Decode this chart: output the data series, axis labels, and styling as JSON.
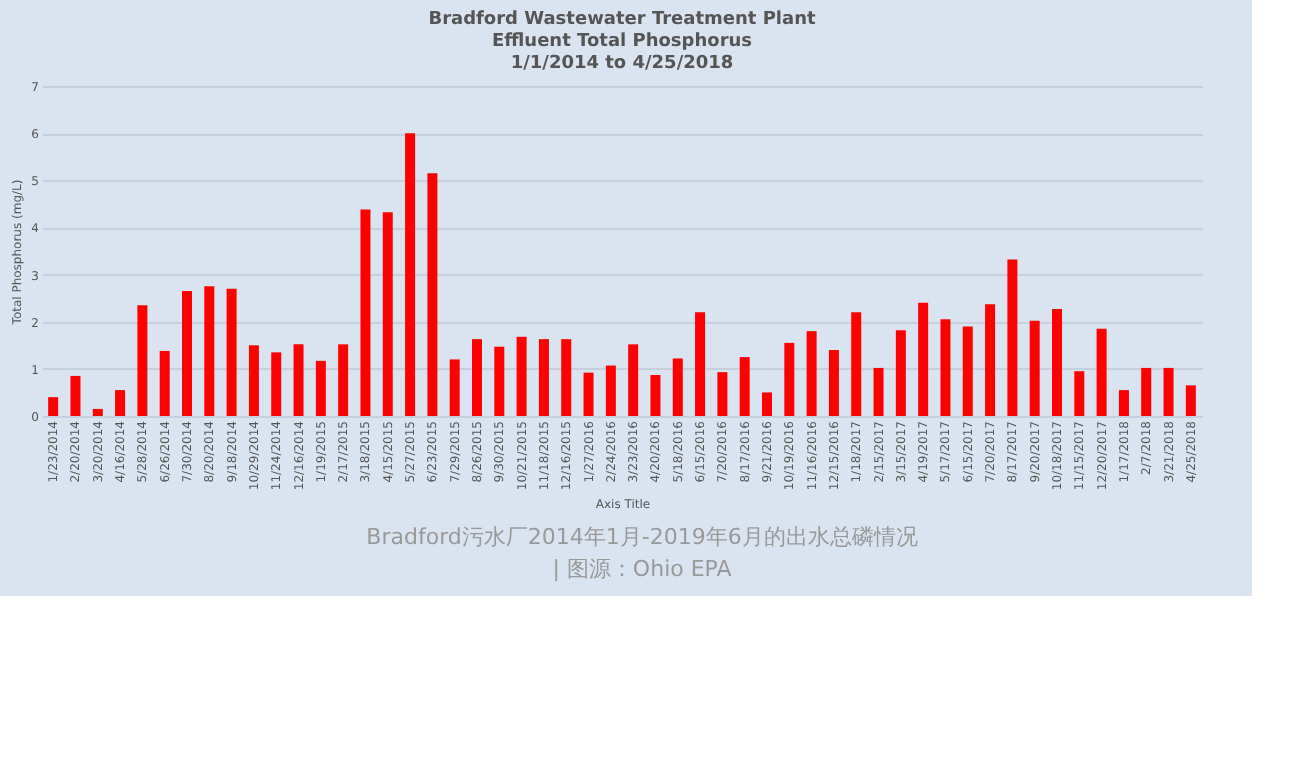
{
  "chart_data": {
    "type": "bar",
    "title": "Bradford Wastewater Treatment Plant\nEffluent Total Phosphorus\n1/1/2014 to 4/25/2018",
    "xlabel": "Axis Title",
    "ylabel": "Total Phosphorus (mg/L)",
    "categories": [
      "1/23/2014",
      "2/20/2014",
      "3/20/2014",
      "4/16/2014",
      "5/28/2014",
      "6/26/2014",
      "7/30/2014",
      "8/20/2014",
      "9/18/2014",
      "10/29/2014",
      "11/24/2014",
      "12/16/2014",
      "1/19/2015",
      "2/17/2015",
      "3/18/2015",
      "4/15/2015",
      "5/27/2015",
      "6/23/2015",
      "7/29/2015",
      "8/26/2015",
      "9/30/2015",
      "10/21/2015",
      "11/18/2015",
      "12/16/2015",
      "1/27/2016",
      "2/24/2016",
      "3/23/2016",
      "4/20/2016",
      "5/18/2016",
      "6/15/2016",
      "7/20/2016",
      "8/17/2016",
      "9/21/2016",
      "10/19/2016",
      "11/16/2016",
      "12/15/2016",
      "1/18/2017",
      "2/15/2017",
      "3/15/2017",
      "4/19/2017",
      "5/17/2017",
      "6/15/2017",
      "7/20/2017",
      "8/17/2017",
      "9/20/2017",
      "10/18/2017",
      "11/15/2017",
      "12/20/2017",
      "1/17/2018",
      "2/7/2018",
      "3/21/2018",
      "4/25/2018"
    ],
    "values": [
      0.4,
      0.85,
      0.15,
      0.55,
      2.35,
      1.38,
      2.65,
      2.75,
      2.7,
      1.5,
      1.35,
      1.52,
      1.17,
      1.52,
      4.38,
      4.32,
      6.0,
      5.15,
      1.2,
      1.63,
      1.47,
      1.68,
      1.63,
      1.63,
      0.92,
      1.07,
      1.52,
      0.87,
      1.22,
      2.2,
      0.93,
      1.25,
      0.5,
      1.55,
      1.8,
      1.4,
      2.2,
      1.02,
      1.82,
      2.4,
      2.05,
      1.9,
      2.37,
      3.32,
      2.02,
      2.27,
      0.95,
      1.85,
      0.55,
      1.02,
      1.02,
      0.65
    ],
    "color": "#ff0000",
    "ylim": [
      0,
      7
    ],
    "yticks": [
      0,
      1,
      2,
      3,
      4,
      5,
      6,
      7
    ],
    "grid": "y",
    "annotations": [
      "Bradford污水厂2014年1月-2019年6月的出水总磷情况",
      "| 图源：Ohio EPA"
    ]
  }
}
